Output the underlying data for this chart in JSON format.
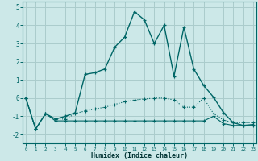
{
  "xlabel": "Humidex (Indice chaleur)",
  "background_color": "#cce8e8",
  "grid_color": "#aacccc",
  "line_color": "#006666",
  "series1_y": [
    0.0,
    -1.7,
    -0.85,
    -1.25,
    -1.25,
    -1.25,
    -1.25,
    -1.25,
    -1.25,
    -1.25,
    -1.25,
    -1.25,
    -1.25,
    -1.25,
    -1.25,
    -1.25,
    -1.25,
    -1.25,
    -1.25,
    -1.0,
    -1.4,
    -1.5,
    -1.5,
    -1.5
  ],
  "series2_y": [
    0.0,
    -1.7,
    -0.85,
    -1.15,
    -1.15,
    -0.85,
    -0.7,
    -0.6,
    -0.5,
    -0.35,
    -0.2,
    -0.1,
    -0.05,
    0.0,
    0.0,
    -0.1,
    -0.5,
    -0.5,
    0.0,
    -0.85,
    -1.2,
    -1.35,
    -1.35,
    -1.35
  ],
  "series3_y": [
    0.0,
    -1.7,
    -0.85,
    -1.15,
    -1.0,
    -0.8,
    1.3,
    1.4,
    1.6,
    2.8,
    3.35,
    4.75,
    4.3,
    3.0,
    4.0,
    1.2,
    3.9,
    1.6,
    0.7,
    0.05,
    -0.8,
    -1.35,
    -1.5,
    -1.45
  ],
  "x": [
    0,
    1,
    2,
    3,
    4,
    5,
    6,
    7,
    8,
    9,
    10,
    11,
    12,
    13,
    14,
    15,
    16,
    17,
    18,
    19,
    20,
    21,
    22,
    23
  ],
  "ylim": [
    -2.5,
    5.3
  ],
  "xlim": [
    0,
    23
  ],
  "yticks": [
    -2,
    -1,
    0,
    1,
    2,
    3,
    4,
    5
  ],
  "xticks": [
    0,
    1,
    2,
    3,
    4,
    5,
    6,
    7,
    8,
    9,
    10,
    11,
    12,
    13,
    14,
    15,
    16,
    17,
    18,
    19,
    20,
    21,
    22,
    23
  ]
}
